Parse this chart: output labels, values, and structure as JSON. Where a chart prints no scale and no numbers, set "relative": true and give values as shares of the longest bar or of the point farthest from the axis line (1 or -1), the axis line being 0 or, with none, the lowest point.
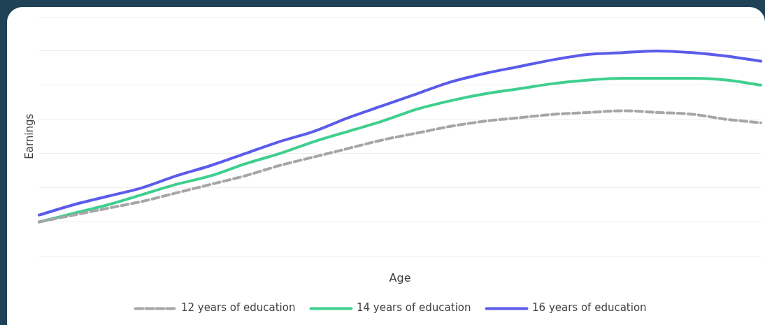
{
  "chart_data": {
    "type": "line",
    "xlabel": "Age",
    "ylabel": "Earnings",
    "relative": true,
    "grid": "y",
    "legend": "bottom",
    "marker": "none",
    "categories": [
      null,
      null,
      null,
      null,
      null,
      null,
      null,
      null,
      null,
      null,
      null,
      null,
      null,
      null,
      null,
      null,
      null,
      null,
      null,
      null,
      null,
      null
    ],
    "series": [
      {
        "name": "12 years of education",
        "color": "#a6a6a6",
        "line_style": "dashed",
        "values": [
          0.0,
          0.04,
          0.08,
          0.12,
          0.17,
          0.22,
          0.27,
          0.33,
          0.38,
          0.43,
          0.48,
          0.52,
          0.56,
          0.59,
          0.61,
          0.63,
          0.64,
          0.65,
          0.64,
          0.63,
          0.6,
          0.58
        ]
      },
      {
        "name": "14 years of education",
        "color": "#3ecf8e",
        "line_style": "solid",
        "values": [
          0.0,
          0.05,
          0.1,
          0.16,
          0.22,
          0.27,
          0.34,
          0.4,
          0.47,
          0.53,
          0.59,
          0.66,
          0.71,
          0.75,
          0.78,
          0.81,
          0.83,
          0.84,
          0.84,
          0.84,
          0.83,
          0.8
        ]
      },
      {
        "name": "16 years of education",
        "color": "#5b5bea",
        "line_style": "solid",
        "values": [
          0.04,
          0.1,
          0.15,
          0.2,
          0.27,
          0.33,
          0.4,
          0.47,
          0.53,
          0.61,
          0.68,
          0.75,
          0.82,
          0.87,
          0.91,
          0.95,
          0.98,
          0.99,
          1.0,
          0.99,
          0.97,
          0.94
        ]
      }
    ]
  }
}
